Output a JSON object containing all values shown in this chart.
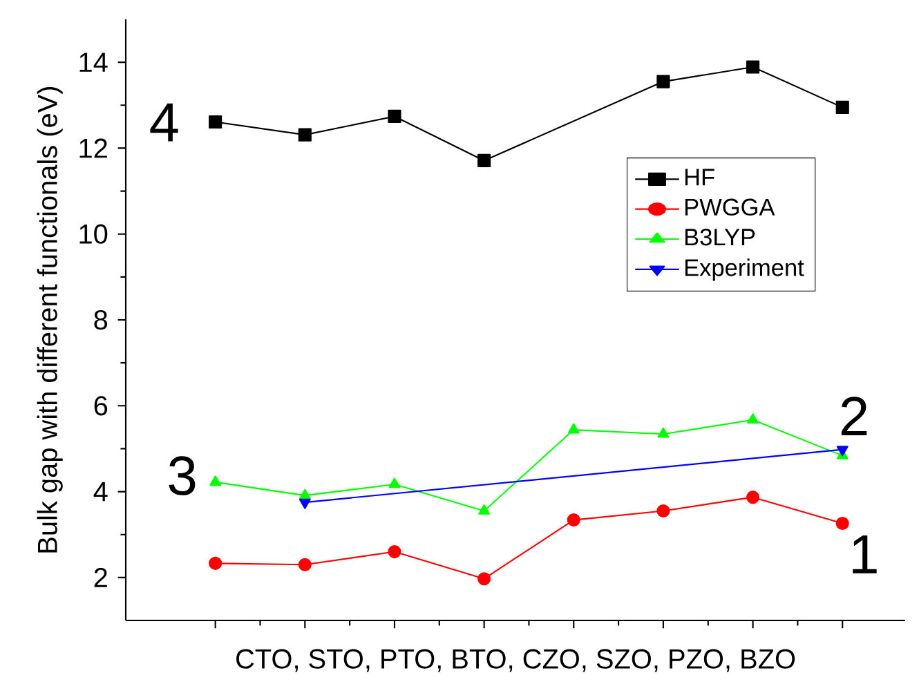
{
  "chart_data": {
    "type": "line",
    "ylabel": "Bulk gap with different functionals (eV)",
    "xlabel": "CTO, STO, PTO, BTO, CZO, SZO, PZO, BZO",
    "categories": [
      null,
      null,
      null,
      null,
      null,
      null,
      null,
      null
    ],
    "ylim": [
      1,
      15
    ],
    "yticks": [
      2,
      4,
      6,
      8,
      10,
      12,
      14
    ],
    "legend": "right",
    "series": [
      {
        "name": "HF",
        "color": "#000000",
        "marker": "square",
        "values": [
          12.61,
          12.31,
          12.74,
          11.71,
          null,
          13.55,
          13.89,
          12.95
        ]
      },
      {
        "name": "PWGGA",
        "color": "#ff0000",
        "marker": "circle",
        "values": [
          2.33,
          2.3,
          2.6,
          1.97,
          3.34,
          3.55,
          3.87,
          3.26
        ]
      },
      {
        "name": "B3LYP",
        "color": "#00ff00",
        "marker": "triangle",
        "values": [
          4.22,
          3.91,
          4.17,
          3.55,
          5.44,
          5.34,
          5.67,
          4.84
        ]
      },
      {
        "name": "Experiment",
        "color": "#0000ff",
        "marker": "triangle-down",
        "values": [
          null,
          3.75,
          null,
          null,
          null,
          null,
          null,
          4.98
        ]
      }
    ],
    "annotations": [
      "4",
      "1",
      "3",
      "2"
    ]
  }
}
